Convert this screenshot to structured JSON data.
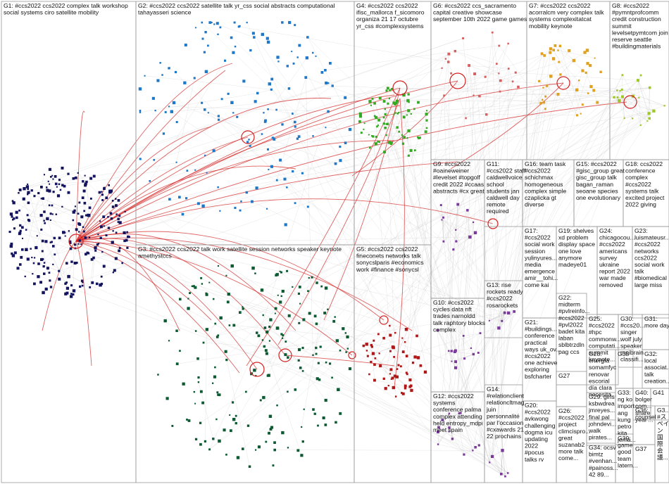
{
  "colors": {
    "G1": "#14145e",
    "G2": "#1e78c8",
    "G3": "#0c5a32",
    "G4": "#33aa22",
    "G5": "#b01818",
    "G6": "#d86060",
    "G7": "#e0a020",
    "G8": "#a0c828",
    "misc": "#7a3a9a",
    "edge": "#c8c8c8",
    "edge_red": "#d42020",
    "border": "#9a9a9a"
  },
  "groups": [
    {
      "id": "G1",
      "lines": [
        "G1: #ccs2022 ccs2022 complex talk workshop",
        "social systems ciro satellite mobility"
      ]
    },
    {
      "id": "G2",
      "lines": [
        "G2: #ccs2022 ccs2022 satellite talk yr_css social abstracts computational",
        "tahayasseri science"
      ]
    },
    {
      "id": "G3",
      "lines": [
        "G3: #ccs2022 ccs2022 talk work satellite session networks speaker keynote",
        "amethystccs"
      ]
    },
    {
      "id": "G4",
      "lines": [
        "G4: #ccs2022 ccs2022",
        "ifisc_mallorca f_sicomoro",
        "organiza 21 17 octubre",
        "yr_css #complexsystems"
      ]
    },
    {
      "id": "G5",
      "lines": [
        "G5: #ccs2022 ccs2022",
        "fineconets networks talk",
        "sonycslparis #economics",
        "work #finance #sonycsl"
      ]
    },
    {
      "id": "G6",
      "lines": [
        "G6: #ccs2022 ccs_sacramento",
        "capital creative showcase",
        "september 10th 2022 game games"
      ]
    },
    {
      "id": "G7",
      "lines": [
        "G7: #ccs2022 ccs2022",
        "acorralcm very complex talk",
        "systems complexitatcat",
        "mobility keynote"
      ]
    },
    {
      "id": "G8",
      "lines": [
        "G8: #ccs2022",
        "#pymntprofcomm",
        "credit construction",
        "summit",
        "levelsetpymtcom join",
        "reserve seattle",
        "#buildingmaterials"
      ]
    },
    {
      "id": "G9",
      "lines": [
        "G9: #ccs2022",
        "#oaineweiner",
        "#levelset #topgolf",
        "credit 2022 #ccaas",
        "abstracts #cx great"
      ]
    },
    {
      "id": "G10",
      "lines": [
        "G10: #ccs2022",
        "cycles data nft",
        "trades narnoldd",
        "talk raphtory blocks",
        "complex"
      ]
    },
    {
      "id": "G11",
      "lines": [
        "G11:",
        "#ccs2022 staff",
        "caldwellvoice",
        "school",
        "students jan",
        "caldwell day",
        "remote",
        "required"
      ]
    },
    {
      "id": "G12",
      "lines": [
        "G12: #ccs2022",
        "systems",
        "conference palma",
        "complex attending",
        "held entropy_mdpi",
        "meet spain"
      ]
    },
    {
      "id": "G13",
      "lines": [
        "G13: rise",
        "rockets ready",
        "#ccs2022",
        "rosarockets"
      ]
    },
    {
      "id": "G14",
      "lines": [
        "G14:",
        "#relationclient",
        "relationcltmag",
        "juin",
        "personnalité",
        "par l'occasion",
        "#cxawards 21",
        "22 prochains"
      ]
    },
    {
      "id": "G15",
      "lines": [
        "G15: #ccs2022",
        "#gisc_group great",
        "gisc_group talk",
        "bagan_raman",
        "seoane species",
        "one evolutionary"
      ]
    },
    {
      "id": "G16",
      "lines": [
        "G16: team task",
        "#ccs2022",
        "schichmax",
        "homogeneous",
        "complex simple",
        "czaplicka gt",
        "diverse"
      ]
    },
    {
      "id": "G17",
      "lines": [
        "G17:",
        "#ccs2022",
        "social work",
        "session",
        "yulinyures...",
        "media",
        "emergence",
        "amir__tohi...",
        "come kai"
      ]
    },
    {
      "id": "G18",
      "lines": [
        "G18: ccs2022",
        "conference",
        "complex",
        "#ccs2022",
        "systems talk",
        "excited project",
        "2022 giving"
      ]
    },
    {
      "id": "G19",
      "lines": [
        "G19: shelves",
        "xd problem",
        "display space",
        "one love",
        "anymore",
        "madeye01"
      ]
    },
    {
      "id": "G20",
      "lines": [
        "G20:",
        "#ccs2022",
        "avkwong",
        "challenging",
        "dogma icu",
        "updating",
        "2022",
        "#pocus",
        "talks rv"
      ]
    },
    {
      "id": "G21",
      "lines": [
        "G21:",
        "#buildings...",
        "conference",
        "practical",
        "ways uk_ov...",
        "#ccs2022",
        "one achieve",
        "exploring",
        "bsfcharter"
      ]
    },
    {
      "id": "G22",
      "lines": [
        "G22:",
        "midterm",
        "#pvlreinfo...",
        "#ccs2022",
        "#pvl2022",
        "badet kita",
        "laban",
        "sblbtrzdln",
        "pag ccs"
      ]
    },
    {
      "id": "G23",
      "lines": [
        "G23:",
        "luismateusr...",
        "#ccs2022",
        "networks",
        "ccs2022",
        "social work",
        "talk",
        "#biomedical",
        "large miss"
      ]
    },
    {
      "id": "G24",
      "lines": [
        "G24:",
        "chicagocou...",
        "#ccs2022",
        "americans",
        "survey",
        "ukraine",
        "report 2022",
        "war made",
        "removed"
      ]
    },
    {
      "id": "G25",
      "lines": [
        "G25:",
        "#ccs2022",
        "#hpc",
        "commonw...",
        "computati...",
        "summit",
        "keynote..."
      ]
    },
    {
      "id": "G26",
      "lines": [
        "G26:",
        "#ccs2022",
        "project",
        "climcispro...",
        "great",
        "suzanab2",
        "more talk",
        "come..."
      ]
    },
    {
      "id": "G27",
      "lines": [
        "G27"
      ]
    },
    {
      "id": "G28",
      "lines": [
        "G28:",
        "energía",
        "somamfyc",
        "renovar",
        "escorial",
        "día clara",
        "necesita..."
      ]
    },
    {
      "id": "G29",
      "lines": [
        "G29: girls",
        "ksbwdrea",
        "jmreyes...",
        "final pal",
        "johndevi...",
        "walk",
        "pirates..."
      ]
    },
    {
      "id": "G30",
      "lines": [
        "G30:",
        "#ccs20...",
        "singer",
        "wolf july",
        "speaker",
        "mpibrain",
        "classifi..."
      ]
    },
    {
      "id": "G31",
      "lines": [
        "G31:",
        "more day"
      ]
    },
    {
      "id": "G32",
      "lines": [
        "G32:",
        "local",
        "associat...",
        "talk",
        "creation..."
      ]
    },
    {
      "id": "G33",
      "lines": [
        "G33:",
        "ng ko",
        "import...",
        "ang",
        "kung",
        "petro",
        "kita",
        "jema..."
      ]
    },
    {
      "id": "G34",
      "lines": [
        "G34: ocsv",
        "bimtz",
        "#venhan...",
        "#painoss...",
        "42 89..."
      ]
    },
    {
      "id": "G35",
      "lines": [
        "G35"
      ]
    },
    {
      "id": "G36",
      "lines": [
        "G36:",
        "counsel"
      ]
    },
    {
      "id": "G37",
      "lines": [
        "G37"
      ]
    },
    {
      "id": "G38",
      "lines": [
        "G3...",
        "#ス",
        "ペイ",
        "ン",
        "国",
        "際",
        "会",
        "議..."
      ]
    },
    {
      "id": "G39",
      "lines": [
        "G39:",
        "game",
        "good",
        "team",
        "latern..."
      ]
    },
    {
      "id": "G40",
      "lines": [
        "G40:",
        "bolger",
        "com...",
        "share",
        "year'..."
      ]
    },
    {
      "id": "G41",
      "lines": [
        "G41"
      ]
    }
  ]
}
